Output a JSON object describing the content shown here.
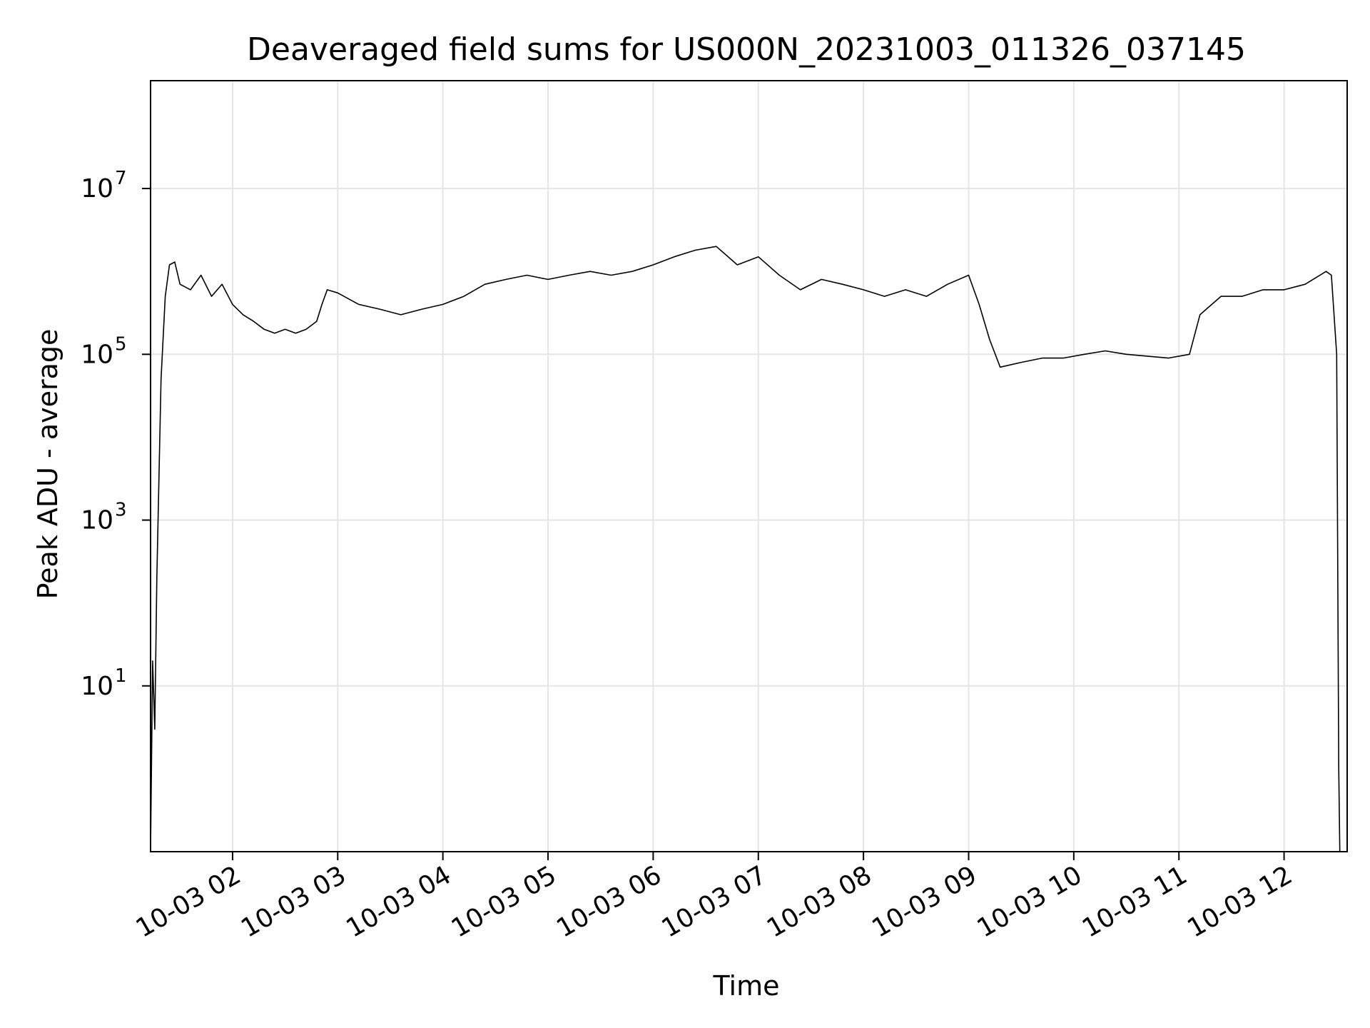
{
  "chart_data": {
    "type": "line",
    "title": "Deaveraged field sums for US000N_20231003_011326_037145",
    "xlabel": "Time",
    "ylabel": "Peak ADU - average",
    "yscale": "log",
    "ylim": [
      0.1,
      200000000
    ],
    "xlim_hours": [
      1.22,
      12.6
    ],
    "grid": true,
    "legend": "none",
    "line_color": "#000000",
    "grid_color": "#e5e5e5",
    "x_ticks": [
      {
        "hour": 2,
        "label": "10-03 02"
      },
      {
        "hour": 3,
        "label": "10-03 03"
      },
      {
        "hour": 4,
        "label": "10-03 04"
      },
      {
        "hour": 5,
        "label": "10-03 05"
      },
      {
        "hour": 6,
        "label": "10-03 06"
      },
      {
        "hour": 7,
        "label": "10-03 07"
      },
      {
        "hour": 8,
        "label": "10-03 08"
      },
      {
        "hour": 9,
        "label": "10-03 09"
      },
      {
        "hour": 10,
        "label": "10-03 10"
      },
      {
        "hour": 11,
        "label": "10-03 11"
      },
      {
        "hour": 12,
        "label": "10-03 12"
      }
    ],
    "y_ticks": [
      {
        "value": 10,
        "base": "10",
        "exp": "1"
      },
      {
        "value": 1000,
        "base": "10",
        "exp": "3"
      },
      {
        "value": 100000,
        "base": "10",
        "exp": "5"
      },
      {
        "value": 10000000,
        "base": "10",
        "exp": "7"
      }
    ],
    "series": [
      {
        "points": [
          [
            1.22,
            0.1
          ],
          [
            1.24,
            20
          ],
          [
            1.26,
            3
          ],
          [
            1.28,
            200
          ],
          [
            1.32,
            50000
          ],
          [
            1.36,
            500000
          ],
          [
            1.4,
            1200000
          ],
          [
            1.45,
            1300000
          ],
          [
            1.5,
            700000
          ],
          [
            1.6,
            600000
          ],
          [
            1.7,
            900000
          ],
          [
            1.8,
            500000
          ],
          [
            1.9,
            700000
          ],
          [
            2.0,
            400000
          ],
          [
            2.1,
            300000
          ],
          [
            2.2,
            250000
          ],
          [
            2.3,
            200000
          ],
          [
            2.4,
            180000
          ],
          [
            2.5,
            200000
          ],
          [
            2.6,
            180000
          ],
          [
            2.7,
            200000
          ],
          [
            2.8,
            250000
          ],
          [
            2.85,
            400000
          ],
          [
            2.9,
            600000
          ],
          [
            3.0,
            550000
          ],
          [
            3.2,
            400000
          ],
          [
            3.4,
            350000
          ],
          [
            3.6,
            300000
          ],
          [
            3.8,
            350000
          ],
          [
            4.0,
            400000
          ],
          [
            4.2,
            500000
          ],
          [
            4.4,
            700000
          ],
          [
            4.6,
            800000
          ],
          [
            4.8,
            900000
          ],
          [
            5.0,
            800000
          ],
          [
            5.2,
            900000
          ],
          [
            5.4,
            1000000
          ],
          [
            5.6,
            900000
          ],
          [
            5.8,
            1000000
          ],
          [
            6.0,
            1200000
          ],
          [
            6.2,
            1500000
          ],
          [
            6.4,
            1800000
          ],
          [
            6.6,
            2000000
          ],
          [
            6.8,
            1200000
          ],
          [
            7.0,
            1500000
          ],
          [
            7.2,
            900000
          ],
          [
            7.4,
            600000
          ],
          [
            7.6,
            800000
          ],
          [
            7.8,
            700000
          ],
          [
            8.0,
            600000
          ],
          [
            8.2,
            500000
          ],
          [
            8.4,
            600000
          ],
          [
            8.6,
            500000
          ],
          [
            8.8,
            700000
          ],
          [
            9.0,
            900000
          ],
          [
            9.1,
            400000
          ],
          [
            9.2,
            150000
          ],
          [
            9.3,
            70000
          ],
          [
            9.5,
            80000
          ],
          [
            9.7,
            90000
          ],
          [
            9.9,
            90000
          ],
          [
            10.1,
            100000
          ],
          [
            10.3,
            110000
          ],
          [
            10.5,
            100000
          ],
          [
            10.7,
            95000
          ],
          [
            10.9,
            90000
          ],
          [
            11.1,
            100000
          ],
          [
            11.2,
            300000
          ],
          [
            11.4,
            500000
          ],
          [
            11.6,
            500000
          ],
          [
            11.8,
            600000
          ],
          [
            12.0,
            600000
          ],
          [
            12.2,
            700000
          ],
          [
            12.4,
            1000000
          ],
          [
            12.45,
            900000
          ],
          [
            12.5,
            100000
          ],
          [
            12.52,
            1
          ],
          [
            12.53,
            0.1
          ]
        ]
      }
    ]
  }
}
